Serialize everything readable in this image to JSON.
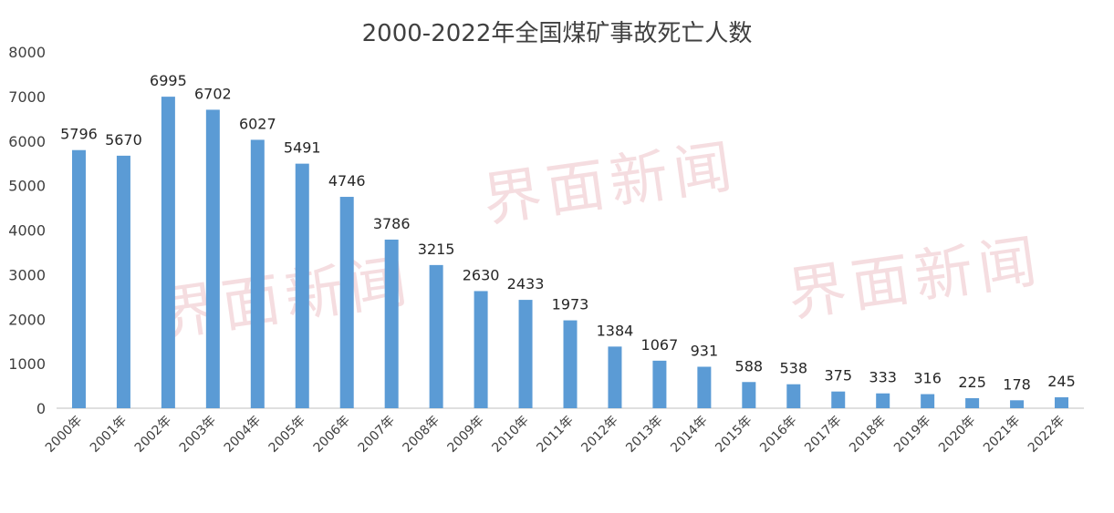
{
  "chart_data": {
    "type": "bar",
    "title": "2000-2022年全国煤矿事故死亡人数",
    "xlabel": "",
    "ylabel": "",
    "ylim": [
      0,
      8000
    ],
    "yticks": [
      "0",
      "1000",
      "2000",
      "3000",
      "4000",
      "5000",
      "6000",
      "7000",
      "8000"
    ],
    "categories": [
      "2000年",
      "2001年",
      "2002年",
      "2003年",
      "2004年",
      "2005年",
      "2006年",
      "2007年",
      "2008年",
      "2009年",
      "2010年",
      "2011年",
      "2012年",
      "2013年",
      "2014年",
      "2015年",
      "2016年",
      "2017年",
      "2018年",
      "2019年",
      "2020年",
      "2021年",
      "2022年"
    ],
    "values": [
      5796,
      5670,
      6995,
      6702,
      6027,
      5491,
      4746,
      3786,
      3215,
      2630,
      2433,
      1973,
      1384,
      1067,
      931,
      588,
      538,
      375,
      333,
      316,
      225,
      178,
      245
    ],
    "bar_color": "#5b9bd5",
    "grid": false,
    "legend": "none"
  },
  "watermark": "界面新闻"
}
